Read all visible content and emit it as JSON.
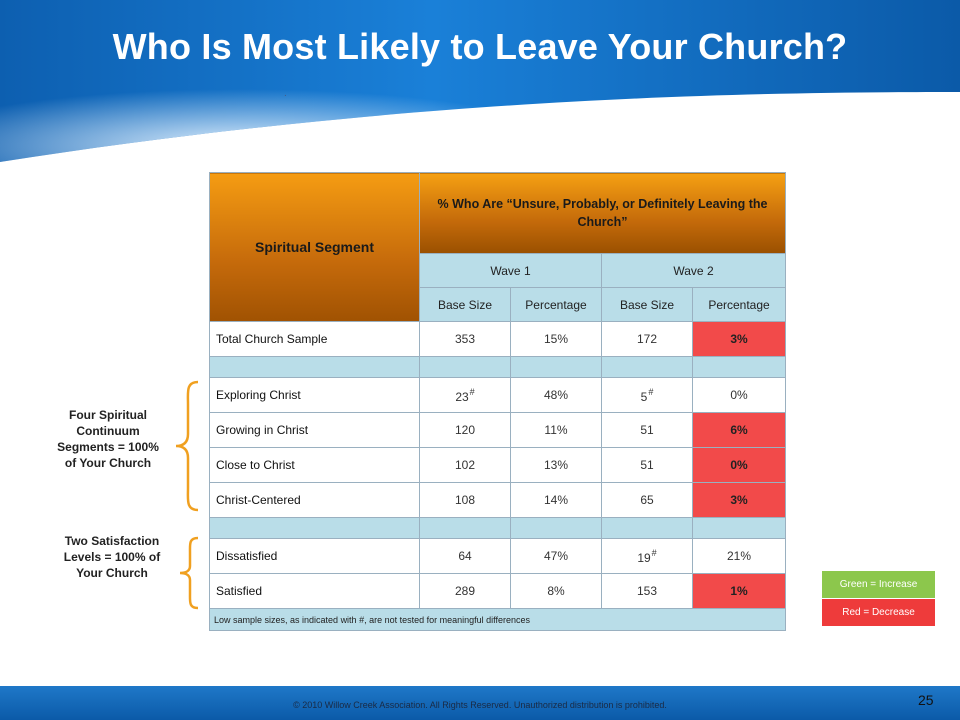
{
  "title": "Who Is Most Likely to Leave Your Church?",
  "decoration": ".",
  "table": {
    "segment_header": "Spiritual Segment",
    "metric_header": "% Who Are “Unsure, Probably, or Definitely Leaving the Church”",
    "waves": [
      "Wave 1",
      "Wave 2"
    ],
    "subheaders": [
      "Base Size",
      "Percentage",
      "Base Size",
      "Percentage"
    ],
    "rows": {
      "total": {
        "label": "Total Church Sample",
        "w1_base": "353",
        "w1_pct": "15%",
        "w2_base": "172",
        "w2_pct": "3%"
      },
      "exploring": {
        "label": "Exploring Christ",
        "w1_base": "23",
        "w1_flag": "#",
        "w1_pct": "48%",
        "w2_base": "5",
        "w2_flag": "#",
        "w2_pct": "0%"
      },
      "growing": {
        "label": "Growing in Christ",
        "w1_base": "120",
        "w1_pct": "11%",
        "w2_base": "51",
        "w2_pct": "6%"
      },
      "close": {
        "label": "Close to Christ",
        "w1_base": "102",
        "w1_pct": "13%",
        "w2_base": "51",
        "w2_pct": "0%"
      },
      "centered": {
        "label": "Christ-Centered",
        "w1_base": "108",
        "w1_pct": "14%",
        "w2_base": "65",
        "w2_pct": "3%"
      },
      "dissatisfied": {
        "label": "Dissatisfied",
        "w1_base": "64",
        "w1_pct": "47%",
        "w2_base": "19",
        "w2_flag": "#",
        "w2_pct": "21%"
      },
      "satisfied": {
        "label": "Satisfied",
        "w1_base": "289",
        "w1_pct": "8%",
        "w2_base": "153",
        "w2_pct": "1%"
      }
    },
    "note": "Low sample sizes, as indicated with #, are not tested for meaningful differences"
  },
  "side_labels": {
    "continuum": "Four Spiritual Continuum Segments = 100% of Your Church",
    "satisfaction": "Two Satisfaction Levels = 100% of Your Church"
  },
  "legend": {
    "green": "Green = Increase",
    "red": "Red = Decrease"
  },
  "footer": {
    "copyright": "© 2010 Willow Creek Association. All Rights Reserved. Unauthorized distribution is prohibited.",
    "page_number": "25"
  },
  "colors": {
    "header_blue": "#0b5aa8",
    "orange": "#e88a10",
    "light_blue": "#b9dde8",
    "decrease_red": "#f24a4a",
    "increase_green": "#8cc74c",
    "brace_orange": "#f0a020"
  }
}
